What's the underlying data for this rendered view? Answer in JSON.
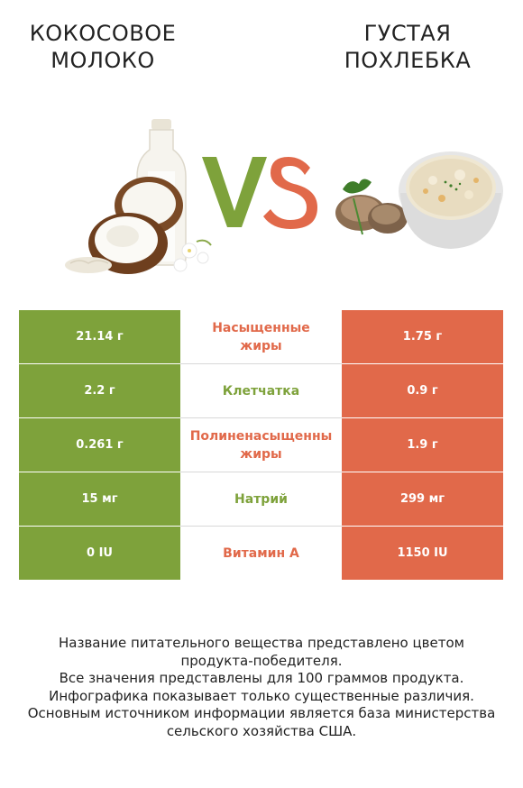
{
  "header": {
    "left_title_line1": "КОКОСОВОЕ",
    "left_title_line2": "МОЛОКО",
    "right_title_line1": "ГУСТАЯ",
    "right_title_line2": "ПОХЛЕБКА"
  },
  "colors": {
    "left_accent": "#7ea23b",
    "right_accent": "#e1694a"
  },
  "icons": {
    "left_image": "coconut-milk-illustration",
    "right_image": "chowder-bowl-illustration",
    "vs": "vs-emblem"
  },
  "rows": [
    {
      "left": "21.14 г",
      "nutrient": "Насыщенные\nжиры",
      "right": "1.75 г",
      "winner": "right"
    },
    {
      "left": "2.2 г",
      "nutrient": "Клетчатка",
      "right": "0.9 г",
      "winner": "left"
    },
    {
      "left": "0.261 г",
      "nutrient": "Полиненасыщенны\nжиры",
      "right": "1.9 г",
      "winner": "right"
    },
    {
      "left": "15 мг",
      "nutrient": "Натрий",
      "right": "299 мг",
      "winner": "left"
    },
    {
      "left": "0 IU",
      "nutrient": "Витамин A",
      "right": "1150 IU",
      "winner": "right"
    }
  ],
  "notes": [
    "Название питательного вещества представлено цветом",
    "продукта-победителя.",
    "Все значения представлены для 100 граммов продукта.",
    "Инфографика показывает только существенные различия.",
    "Основным источником информации является база министерства",
    "сельского хозяйства США."
  ]
}
